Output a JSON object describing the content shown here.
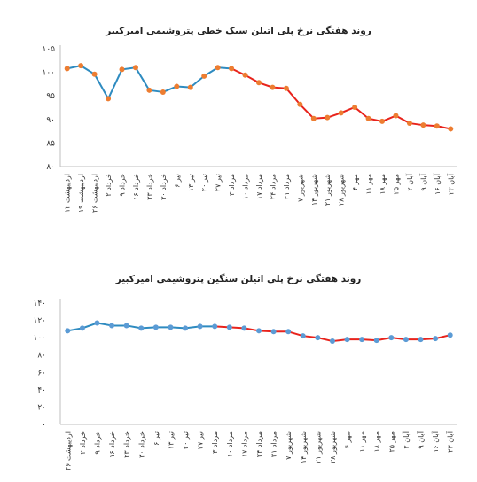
{
  "chart_data": [
    {
      "type": "line",
      "title": "روند هفتگی نرخ پلی اتیلن سبک خطی پتروشیمی امیرکبیر",
      "ylim": [
        80,
        105
      ],
      "yticks": [
        "۸۰",
        "۸۵",
        "۹۰",
        "۹۵",
        "۱۰۰",
        "۱۰۵"
      ],
      "ytick_values": [
        80,
        85,
        90,
        95,
        100,
        105
      ],
      "grid": false,
      "categories": [
        "۱۲ اردیبهشت",
        "۱۹ اردیبهشت",
        "۲۶ اردیبهشت",
        "۲ خرداد",
        "۹ خرداد",
        "۱۶ خرداد",
        "۲۳ خرداد",
        "۳۰ خرداد",
        "۶ تیر",
        "۱۳ تیر",
        "۲۰ تیر",
        "۲۷ تیر",
        "۳ مرداد",
        "۱۰ مرداد",
        "۱۷ مرداد",
        "۲۴ مرداد",
        "۳۱ مرداد",
        "۷ شهریور",
        "۱۴ شهریور",
        "۲۱ شهریور",
        "۲۸ شهریور",
        "۴ مهر",
        "۱۱ مهر",
        "۱۸ مهر",
        "۲۵ مهر",
        "۲ آبان",
        "۹ آبان",
        "۱۶ آبان",
        "۲۳ آبان"
      ],
      "values": [
        100.8,
        101.4,
        99.6,
        94.4,
        100.6,
        101.0,
        96.2,
        95.8,
        97.0,
        96.8,
        99.2,
        101.0,
        100.8,
        99.4,
        97.8,
        96.8,
        96.6,
        93.2,
        90.2,
        90.4,
        91.4,
        92.6,
        90.2,
        89.6,
        90.8,
        89.2,
        88.8,
        88.6,
        88.0
      ],
      "segment_colors": {
        "first_part": "#2E8BC0",
        "second_part": "#E8231C"
      },
      "color_change_index": 12,
      "marker_color": "#ED7D31"
    },
    {
      "type": "line",
      "title": "روند هفتگی نرخ پلی اتیلن سنگین پتروشیمی امیرکبیر",
      "ylim": [
        0,
        140
      ],
      "yticks": [
        "۰",
        "۲۰",
        "۴۰",
        "۶۰",
        "۸۰",
        "۱۰۰",
        "۱۲۰",
        "۱۴۰"
      ],
      "ytick_values": [
        0,
        20,
        40,
        60,
        80,
        100,
        120,
        140
      ],
      "grid": false,
      "categories": [
        "۲۶ اردیبهشت",
        "۲ خرداد",
        "۹ خرداد",
        "۱۶ خرداد",
        "۲۳ خرداد",
        "۳۰ خرداد",
        "۶ تیر",
        "۱۳ تیر",
        "۲۰ تیر",
        "۲۷ تیر",
        "۳ مرداد",
        "۱۰ مرداد",
        "۱۷ مرداد",
        "۲۴ مرداد",
        "۳۱ مرداد",
        "۷ شهریور",
        "۱۴ شهریور",
        "۲۱ شهریور",
        "۲۸ شهریور",
        "۴ مهر",
        "۱۱ مهر",
        "۱۸ مهر",
        "۲۵ مهر",
        "۲ آبان",
        "۹ آبان",
        "۱۶ آبان",
        "۲۳ آبان"
      ],
      "values": [
        108,
        111,
        117,
        114,
        114,
        111,
        112,
        112,
        111,
        113,
        113,
        112,
        111,
        108,
        107,
        107,
        102,
        100,
        96,
        98,
        98,
        97,
        100,
        98,
        98,
        99,
        103
      ],
      "segment_colors": {
        "first_part": "#2E8BC0",
        "second_part": "#E8231C"
      },
      "color_change_index": 10,
      "marker_color": "#5B9BD5"
    }
  ]
}
